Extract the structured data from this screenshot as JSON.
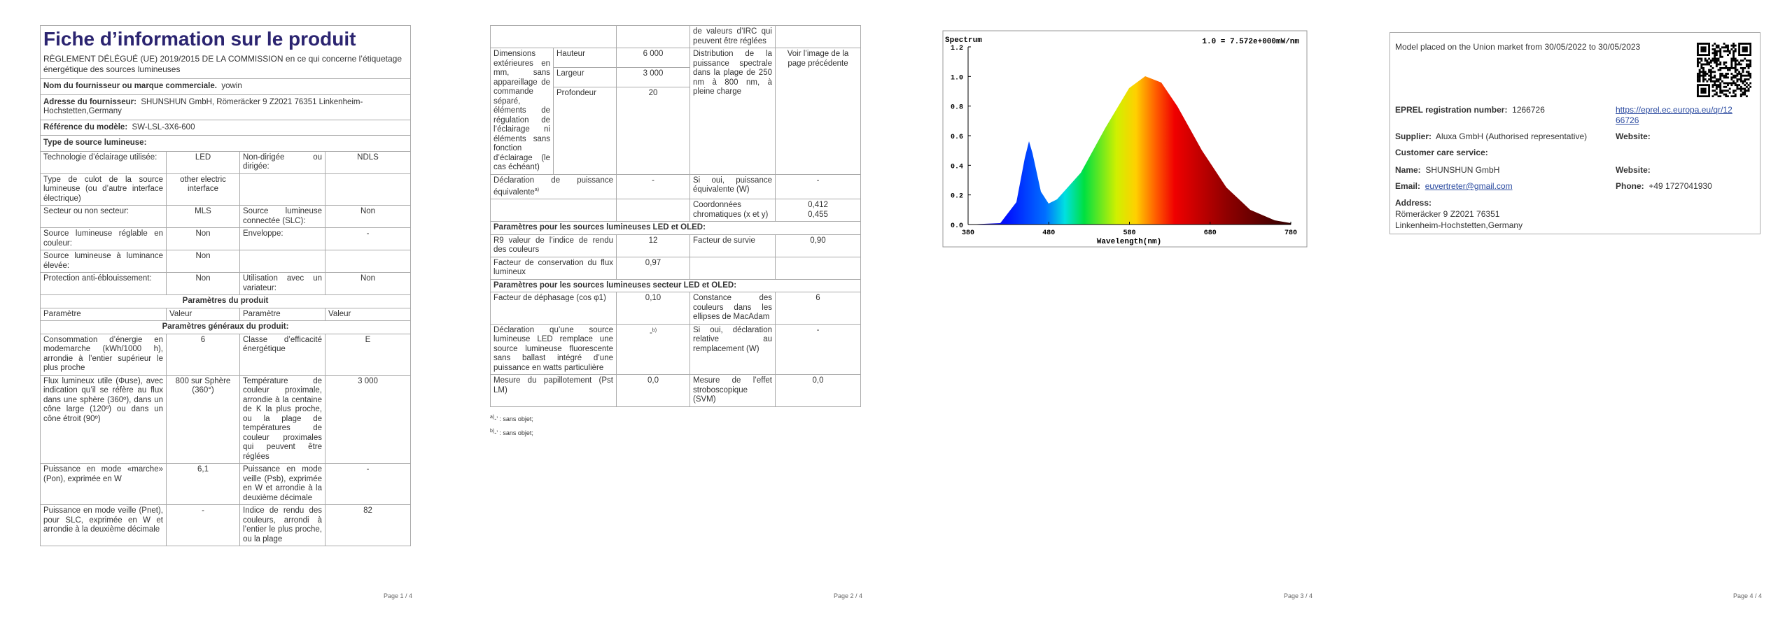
{
  "pages": [
    {
      "title": "Fiche d’information sur le produit",
      "regulation": "RÈGLEMENT DÉLÉGUÉ (UE) 2019/2015 DE LA COMMISSION en ce qui concerne l’étiquetage énergétique des sources lumineuses",
      "info": [
        [
          "Nom du fournisseur ou marque commerciale.",
          "yowin"
        ],
        [
          "Adresse du fournisseur:",
          "SHUNSHUN GmbH, Römeräcker 9 Z2021 76351 Linkenheim-Hochstetten,Germany"
        ],
        [
          "Référence du modèle:",
          "SW-LSL-3X6-600"
        ],
        [
          "Type de source lumineuse:"
        ]
      ],
      "rows": [
        [
          "Technologie d’éclairage utilisée:",
          "LED",
          "Non-dirigée ou dirigée:",
          "NDLS"
        ],
        [
          "Type de culot de la source lumineuse (ou d’autre interface électrique)",
          "other electric interface",
          null,
          null
        ],
        [
          "Secteur ou non secteur:",
          "MLS",
          "Source lumineuse connectée (SLC):",
          "Non"
        ],
        [
          "Source lumineuse réglable en couleur:",
          "Non",
          "Enveloppe:",
          "-"
        ],
        [
          "Source lumineuse à luminance élevée:",
          "Non",
          null,
          null
        ],
        [
          "Protection anti-éblouissement:",
          "Non",
          "Utilisation avec un variateur:",
          "Non"
        ]
      ],
      "section_product": "Paramètres du produit",
      "header": [
        "Paramètre",
        "Valeur",
        "Paramètre",
        "Valeur"
      ],
      "section_general": "Paramètres généraux du produit:",
      "general": [
        [
          "Consommation d’énergie en modemarche (kWh/1000 h), arrondie à l’entier supérieur le plus proche",
          "6",
          "Classe d’efficacité énergétique",
          "E"
        ],
        [
          "Flux lumineux utile (Φuse), avec indication qu’il se réfère au flux dans une sphère (360º), dans un cône large (120º) ou dans un cône étroit (90º)",
          "800 sur Sphère (360°)",
          "Température de couleur proximale, arrondie à la centaine de K la plus proche, ou la plage de températures de couleur proximales qui peuvent être réglées",
          "3 000"
        ],
        [
          "Puissance en mode «marche» (Pon), exprimée en W",
          "6,1",
          "Puissance en mode veille (Psb), exprimée en W et arrondie à la deuxième décimale",
          "-"
        ],
        [
          "Puissance en mode veille (Pnet), pour SLC, exprimée en W et arrondie à la deuxième décimale",
          "-",
          "Indice de rendu des couleurs, arrondi à l’entier le plus proche, ou la plage",
          "82"
        ]
      ],
      "page_label": "Page 1 / 4"
    },
    {
      "top_row": [
        null,
        null,
        "de valeurs d’IRC qui peuvent être réglées",
        null
      ],
      "dimensions": {
        "label": "Dimensions extérieures en mm, sans appareillage de commande séparé, éléments de régulation de l’éclairage ni éléments sans fonction d’éclairage (le cas échéant)",
        "sub": [
          [
            "Hauteur",
            "6 000"
          ],
          [
            "Largeur",
            "3 000"
          ],
          [
            "Profondeur",
            "20"
          ]
        ],
        "label2": "Distribution de la puissance spectrale dans la plage de 250 nm à 800 nm, à pleine charge",
        "value2": "Voir l’image de la page précédente"
      },
      "rows": [
        [
          {
            "text": "Déclaration de puissance équivalente",
            "sup": "a)"
          },
          "-",
          "Si oui, puissance équivalente (W)",
          "-"
        ],
        [
          null,
          null,
          "Coordonnées chromatiques (x et y)",
          [
            "0,412",
            "0,455"
          ]
        ]
      ],
      "section_led": "Paramètres pour les sources lumineuses LED et OLED:",
      "led": [
        [
          "R9 valeur de l’indice de rendu des couleurs",
          "12",
          "Facteur de survie",
          "0,90"
        ],
        [
          "Facteur de conservation du flux lumineux",
          "0,97",
          null,
          null
        ]
      ],
      "section_mains": "Paramètres pour les sources lumineuses secteur LED et OLED:",
      "mains": [
        [
          "Facteur de déphasage (cos φ1)",
          "0,10",
          "Constance des couleurs dans les ellipses de MacAdam",
          "6"
        ],
        [
          "Déclaration qu’une source lumineuse LED remplace une source lumineuse fluorescente sans ballast intégré d’une puissance en watts particulière",
          {
            "text": "-",
            "sup": "b)"
          },
          "Si oui, déclaration relative au remplacement (W)",
          "-"
        ],
        [
          "Mesure du papillotement (Pst LM)",
          "0,0",
          "Mesure de l’effet stroboscopique (SVM)",
          "0,0"
        ]
      ],
      "notes": [
        {
          "sup": "a)",
          "text": "-’ : sans objet;"
        },
        {
          "sup": "b)",
          "text": "-’ : sans objet;"
        }
      ],
      "page_label": "Page 2 / 4"
    },
    {
      "spectrum": {
        "title": "Spectrum",
        "scale": "1.0 = 7.572e+000mW/nm",
        "x_label": "Wavelength(nm)",
        "yticks": [
          "0.0",
          "0.2",
          "0.4",
          "0.6",
          "0.8",
          "1.0",
          "1.2"
        ],
        "xticks": [
          "380",
          "480",
          "580",
          "680",
          "780"
        ]
      },
      "page_label": "Page 3 / 4"
    },
    {
      "market": "Model placed on the Union market from 30/05/2022 to 30/05/2023",
      "eprel_label": "EPREL registration number:",
      "eprel": "1266726",
      "link": [
        "https://eprel.ec.europa.eu/qr/12",
        "66726"
      ],
      "supplier_label": "Supplier:",
      "supplier": "Aluxa GmbH (Authorised representative)",
      "website_label": "Website:",
      "care": "Customer care service:",
      "name_label": "Name:",
      "name": "SHUNSHUN GmbH",
      "website2_label": "Website:",
      "email_label": "Email:",
      "email": "euvertreter@gmail.com",
      "phone_label": "Phone:",
      "phone": "+49 1727041930",
      "address_label": "Address:",
      "address": [
        "Römeräcker 9 Z2021 76351",
        "Linkenheim-Hochstetten,Germany"
      ],
      "page_label": "Page 4 / 4"
    }
  ]
}
